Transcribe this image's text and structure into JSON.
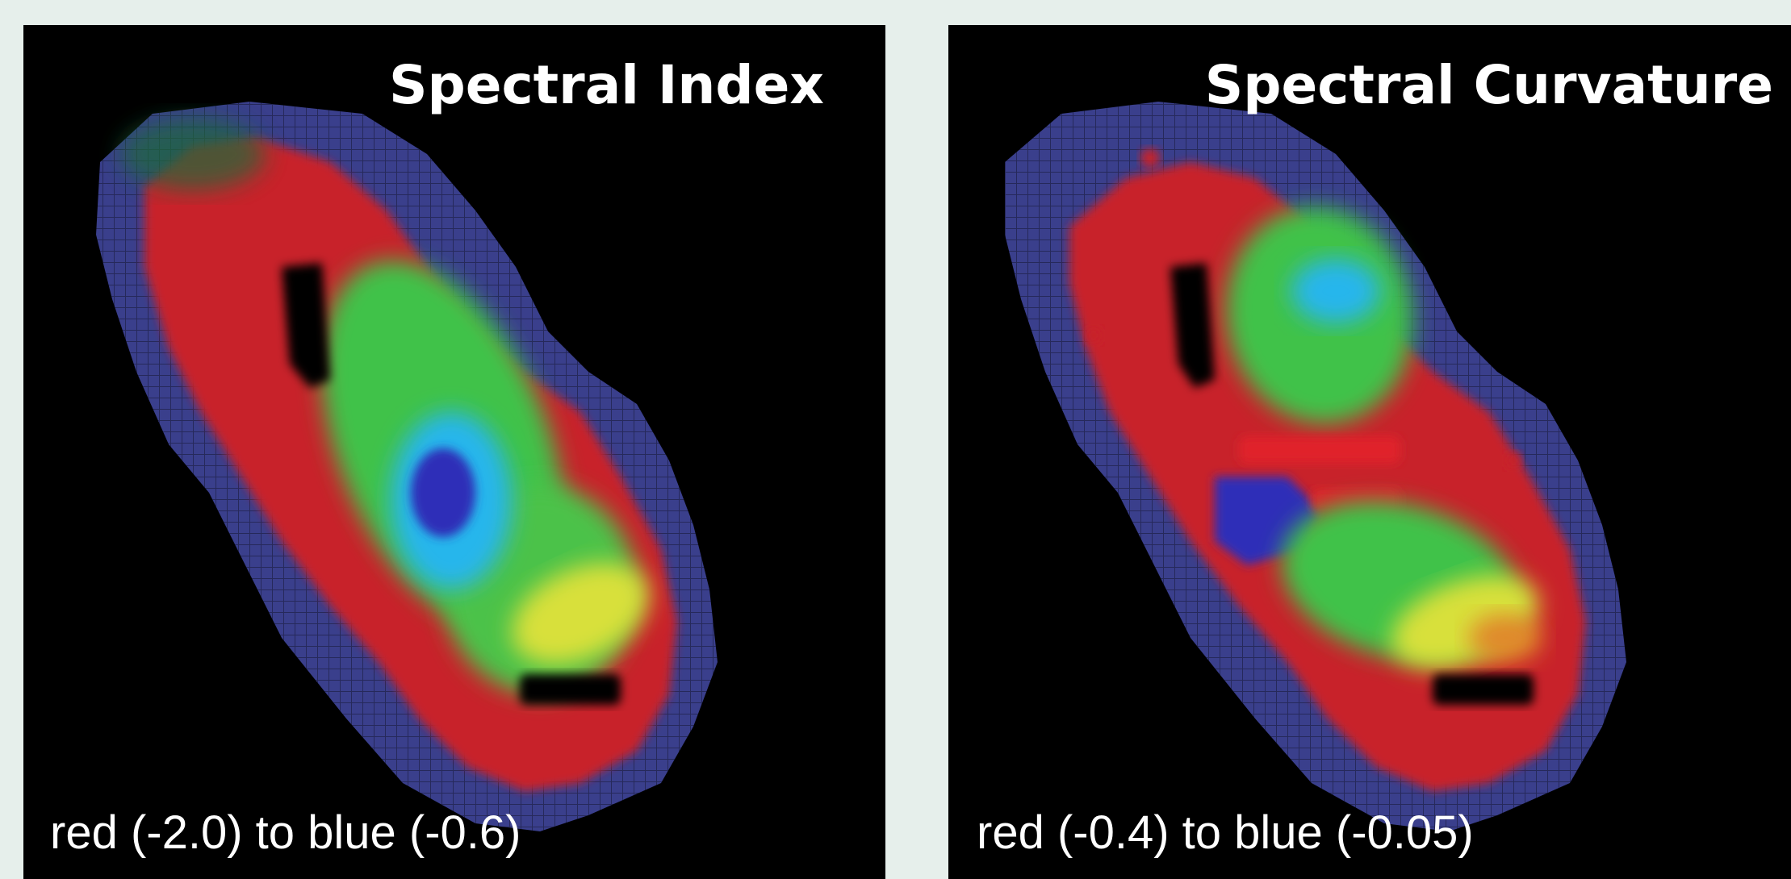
{
  "panels": [
    {
      "title": "Spectral Index",
      "caption": "red (-2.0) to blue (-0.6)"
    },
    {
      "title": "Spectral Curvature",
      "caption": "red (-0.4) to blue (-0.05)"
    }
  ],
  "colors": {
    "background": "#e6efeb",
    "panel": "#000000",
    "text": "#ffffff",
    "scale_red": "#e0232b",
    "scale_yellow": "#d8e03a",
    "scale_green": "#3fc24a",
    "scale_cyan": "#28b6ec",
    "scale_blue": "#2f2fb8",
    "halo_blue": "#3a3f8c"
  }
}
